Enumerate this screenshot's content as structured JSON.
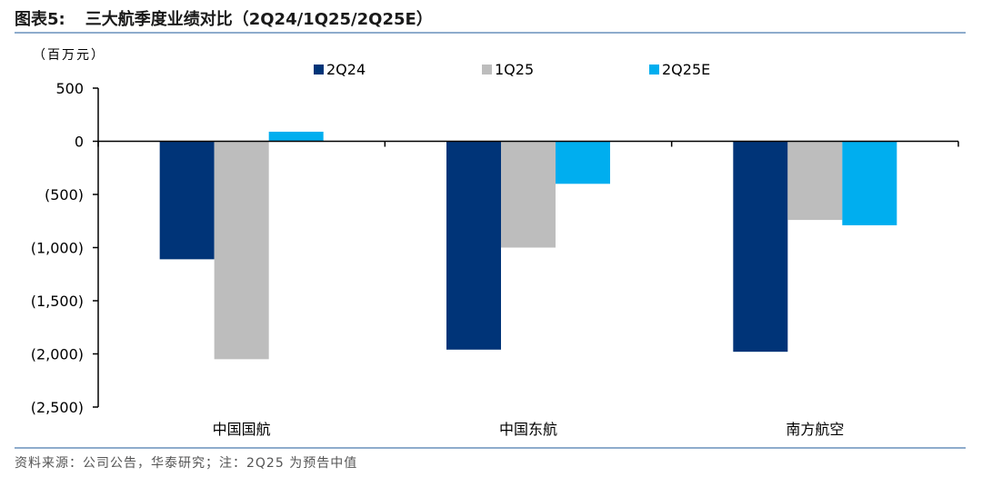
{
  "figure": {
    "label": "图表5:",
    "title": "三大航季度业绩对比（2Q24/1Q25/2Q25E）"
  },
  "source_note": "资料来源：公司公告，华泰研究；注：2Q25 为预告中值",
  "chart_data": {
    "type": "bar",
    "title": "",
    "unit": "（百万元）",
    "xlabel": "",
    "ylabel": "",
    "categories": [
      "中国国航",
      "中国东航",
      "南方航空"
    ],
    "series": [
      {
        "name": "2Q24",
        "values": [
          -1110,
          -1960,
          -1980
        ],
        "color": "#003478"
      },
      {
        "name": "1Q25",
        "values": [
          -2050,
          -1000,
          -740
        ],
        "color": "#bdbdbd"
      },
      {
        "name": "2Q25E",
        "values": [
          90,
          -400,
          -790
        ],
        "color": "#00aeef"
      }
    ],
    "ylim": [
      -2500,
      500
    ],
    "yticks": [
      500,
      0,
      -500,
      -1000,
      -1500,
      -2000,
      -2500
    ],
    "ytick_labels": [
      "500",
      "0",
      "(500)",
      "(1,000)",
      "(1,500)",
      "(2,000)",
      "(2,500)"
    ],
    "grid": false,
    "legend_position": "top"
  }
}
